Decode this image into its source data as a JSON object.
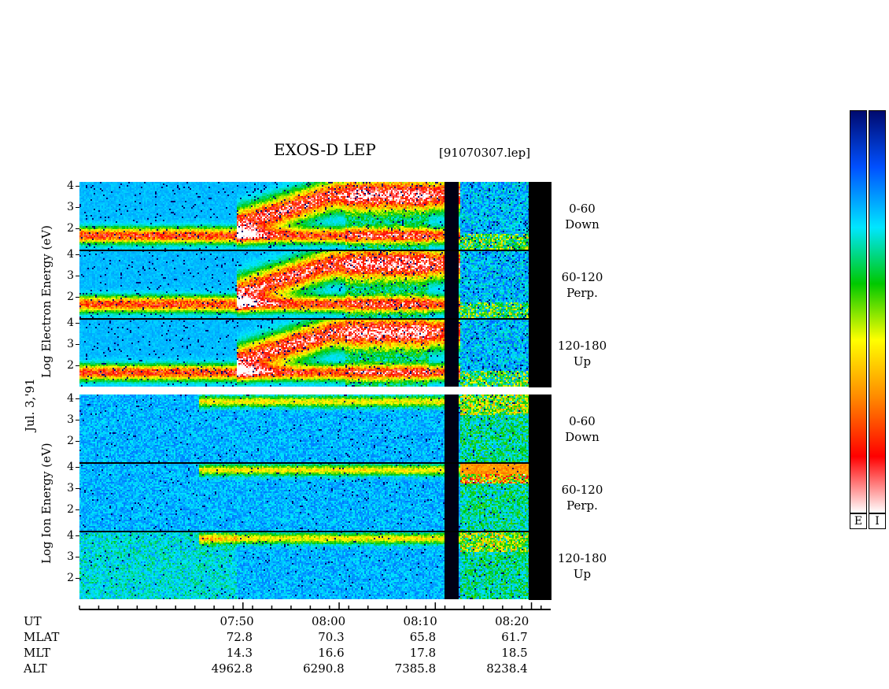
{
  "chart_data": {
    "type": "heatmap",
    "title": "EXOS-D LEP",
    "file_label": "[91070307.lep]",
    "date_label": "Jul. 3,'91",
    "electron_ylabel": "Log Electron Energy (eV)",
    "ion_ylabel": "Log Ion Energy (eV)",
    "y_ticks": [
      "4",
      "3",
      "2"
    ],
    "ylim": [
      1,
      4.2
    ],
    "x_ticks": [
      "07:50",
      "08:00",
      "08:10",
      "08:20"
    ],
    "x_range_minutes": [
      -47,
      2
    ],
    "panels": [
      {
        "species": "Electron",
        "pitch_range": "0-60",
        "direction": "Down"
      },
      {
        "species": "Electron",
        "pitch_range": "60-120",
        "direction": "Perp."
      },
      {
        "species": "Electron",
        "pitch_range": "120-180",
        "direction": "Up"
      },
      {
        "species": "Ion",
        "pitch_range": "0-60",
        "direction": "Down"
      },
      {
        "species": "Ion",
        "pitch_range": "60-120",
        "direction": "Perp."
      },
      {
        "species": "Ion",
        "pitch_range": "120-180",
        "direction": "Up"
      }
    ],
    "orbit_rows": [
      {
        "label": "UT",
        "values": [
          "07:50",
          "08:00",
          "08:10",
          "08:20"
        ]
      },
      {
        "label": "MLAT",
        "values": [
          "72.8",
          "70.3",
          "65.8",
          "61.7"
        ]
      },
      {
        "label": "MLT",
        "values": [
          "14.3",
          "16.6",
          "17.8",
          "18.5"
        ]
      },
      {
        "label": "ALT",
        "values": [
          "4962.8",
          "6290.8",
          "7385.8",
          "8238.4"
        ]
      }
    ],
    "colorbar_labels": [
      "E",
      "I"
    ],
    "colorbar_colors": [
      "#000a6e",
      "#0050ff",
      "#00e6ff",
      "#00c800",
      "#ffff00",
      "#ff8c00",
      "#ff0000",
      "#ffffff"
    ]
  }
}
